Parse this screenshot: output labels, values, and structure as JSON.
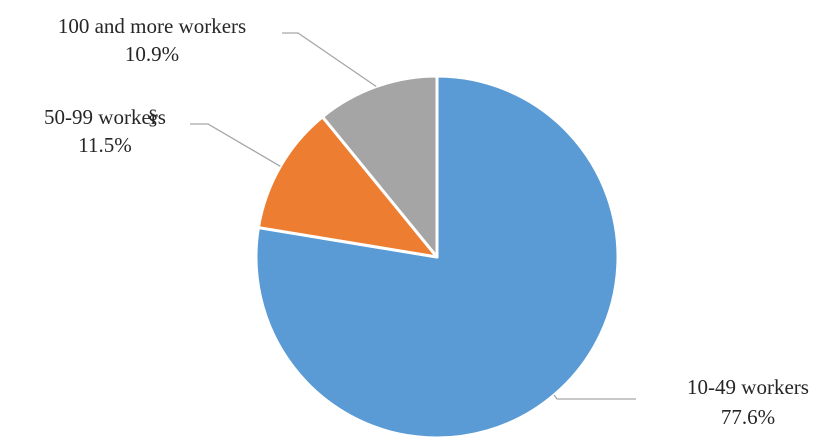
{
  "chart_data": {
    "type": "pie",
    "start_angle_deg": 0,
    "direction": "clockwise",
    "slices": [
      {
        "label": "10-49 workers",
        "value": 77.6,
        "value_label": "77.6%",
        "color": "#5b9bd5"
      },
      {
        "label": "50-99 workers",
        "value": 11.5,
        "value_label": "11.5%",
        "color": "#ed7d31"
      },
      {
        "label": "100 and more workers",
        "value": 10.9,
        "value_label": "10.9%",
        "color": "#a5a5a5"
      }
    ],
    "stray_glyph": "§",
    "leader_line_color": "#a6a6a6"
  }
}
